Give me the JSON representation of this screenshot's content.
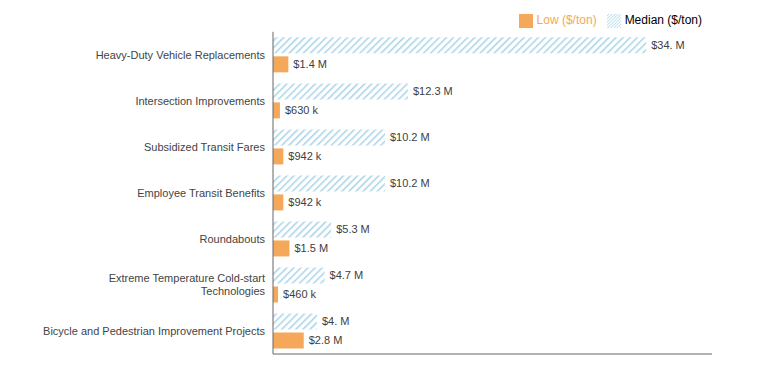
{
  "chart_data": {
    "type": "bar",
    "orientation": "horizontal",
    "categories": [
      "Heavy-Duty Vehicle Replacements",
      "Intersection Improvements",
      "Subsidized Transit Fares",
      "Employee Transit Benefits",
      "Roundabouts",
      "Extreme Temperature Cold-start\nTechnologies",
      "Bicycle and Pedestrian Improvement Projects"
    ],
    "series": [
      {
        "name": "Median ($/ton)",
        "color": "#a8d4e8",
        "values": [
          34.0,
          12.3,
          10.2,
          10.2,
          5.3,
          4.7,
          4.0
        ],
        "value_labels": [
          "$34. M",
          "$12.3 M",
          "$10.2 M",
          "$10.2 M",
          "$5.3 M",
          "$4.7 M",
          "$4. M"
        ]
      },
      {
        "name": "Low ($/ton)",
        "color": "#f5a85a",
        "values": [
          1.4,
          0.63,
          0.942,
          0.942,
          1.5,
          0.46,
          2.8
        ],
        "value_labels": [
          "$1.4 M",
          "$630 k",
          "$942 k",
          "$942 k",
          "$1.5 M",
          "$460 k",
          "$2.8 M"
        ]
      }
    ],
    "xlim": [
      0,
      40
    ],
    "tick_labels": "y",
    "data_labels": true,
    "legend": "upper right",
    "grid": false
  }
}
